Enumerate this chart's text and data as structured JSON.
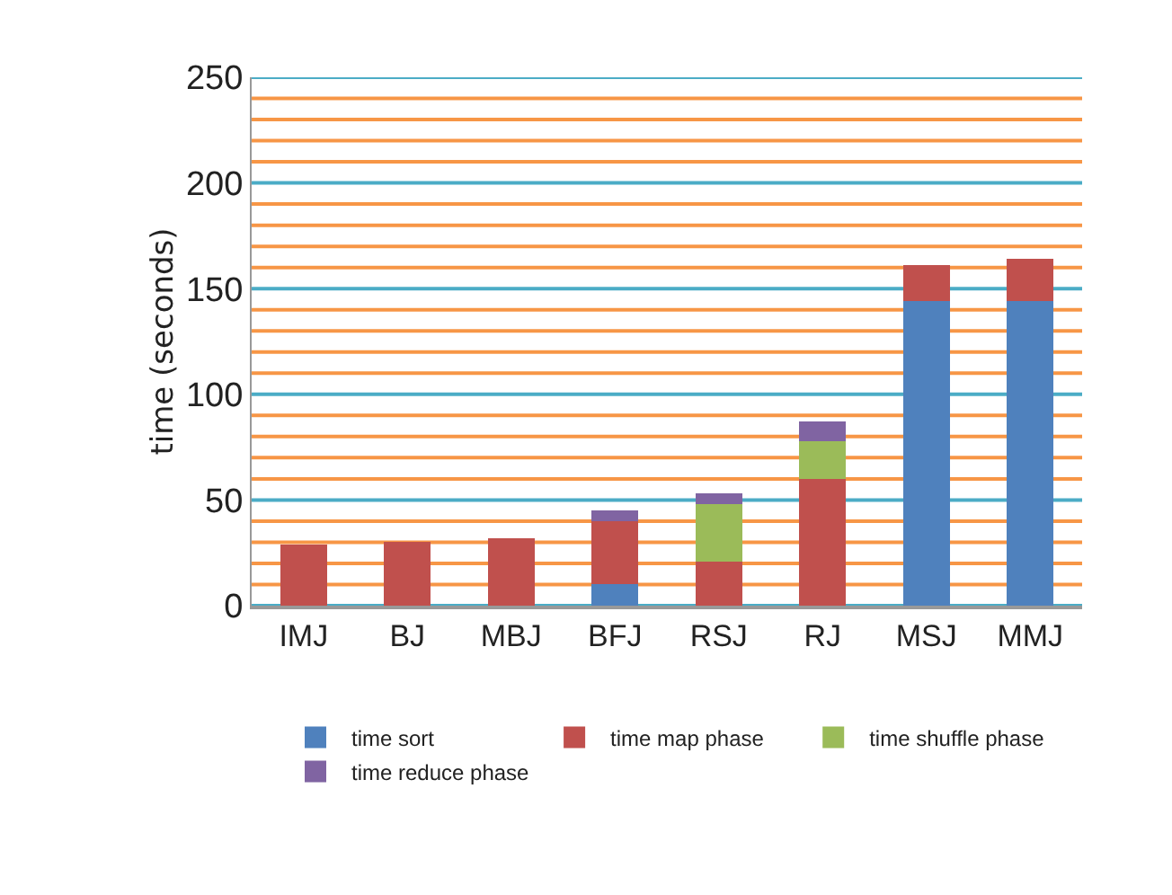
{
  "chart_data": {
    "type": "bar",
    "stacked": true,
    "ylabel": "time (seconds)",
    "categories": [
      "IMJ",
      "BJ",
      "MBJ",
      "BFJ",
      "RSJ",
      "RJ",
      "MSJ",
      "MMJ"
    ],
    "series": [
      {
        "name": "time sort",
        "color": "#4f81bd",
        "values": [
          0,
          0,
          0,
          10,
          0,
          0,
          144,
          144
        ]
      },
      {
        "name": "time map phase",
        "color": "#c0504d",
        "values": [
          29,
          30,
          32,
          30,
          21,
          60,
          17,
          20
        ]
      },
      {
        "name": "time shuffle phase",
        "color": "#9bbb59",
        "values": [
          0,
          0,
          0,
          0,
          27,
          18,
          0,
          0
        ]
      },
      {
        "name": "time reduce phase",
        "color": "#8064a2",
        "values": [
          0,
          0,
          0,
          5,
          5,
          9,
          0,
          0
        ]
      }
    ],
    "ylim": [
      0,
      250
    ],
    "yticks": [
      0,
      {
        "value": 10,
        "label": null
      },
      {
        "value": 20,
        "label": null
      },
      {
        "value": 30,
        "label": null
      },
      {
        "value": 40,
        "label": null
      },
      50,
      {
        "value": 60,
        "label": null
      },
      {
        "value": 70,
        "label": null
      },
      {
        "value": 80,
        "label": null
      },
      {
        "value": 90,
        "label": null
      },
      100,
      {
        "value": 110,
        "label": null
      },
      {
        "value": 120,
        "label": null
      },
      {
        "value": 130,
        "label": null
      },
      {
        "value": 140,
        "label": null
      },
      150,
      {
        "value": 160,
        "label": null
      },
      {
        "value": 170,
        "label": null
      },
      {
        "value": 180,
        "label": null
      },
      {
        "value": 190,
        "label": null
      },
      200,
      {
        "value": 210,
        "label": null
      },
      {
        "value": 220,
        "label": null
      },
      {
        "value": 230,
        "label": null
      },
      {
        "value": 240,
        "label": null
      },
      250
    ],
    "grid": "y",
    "legend": "bottom"
  }
}
